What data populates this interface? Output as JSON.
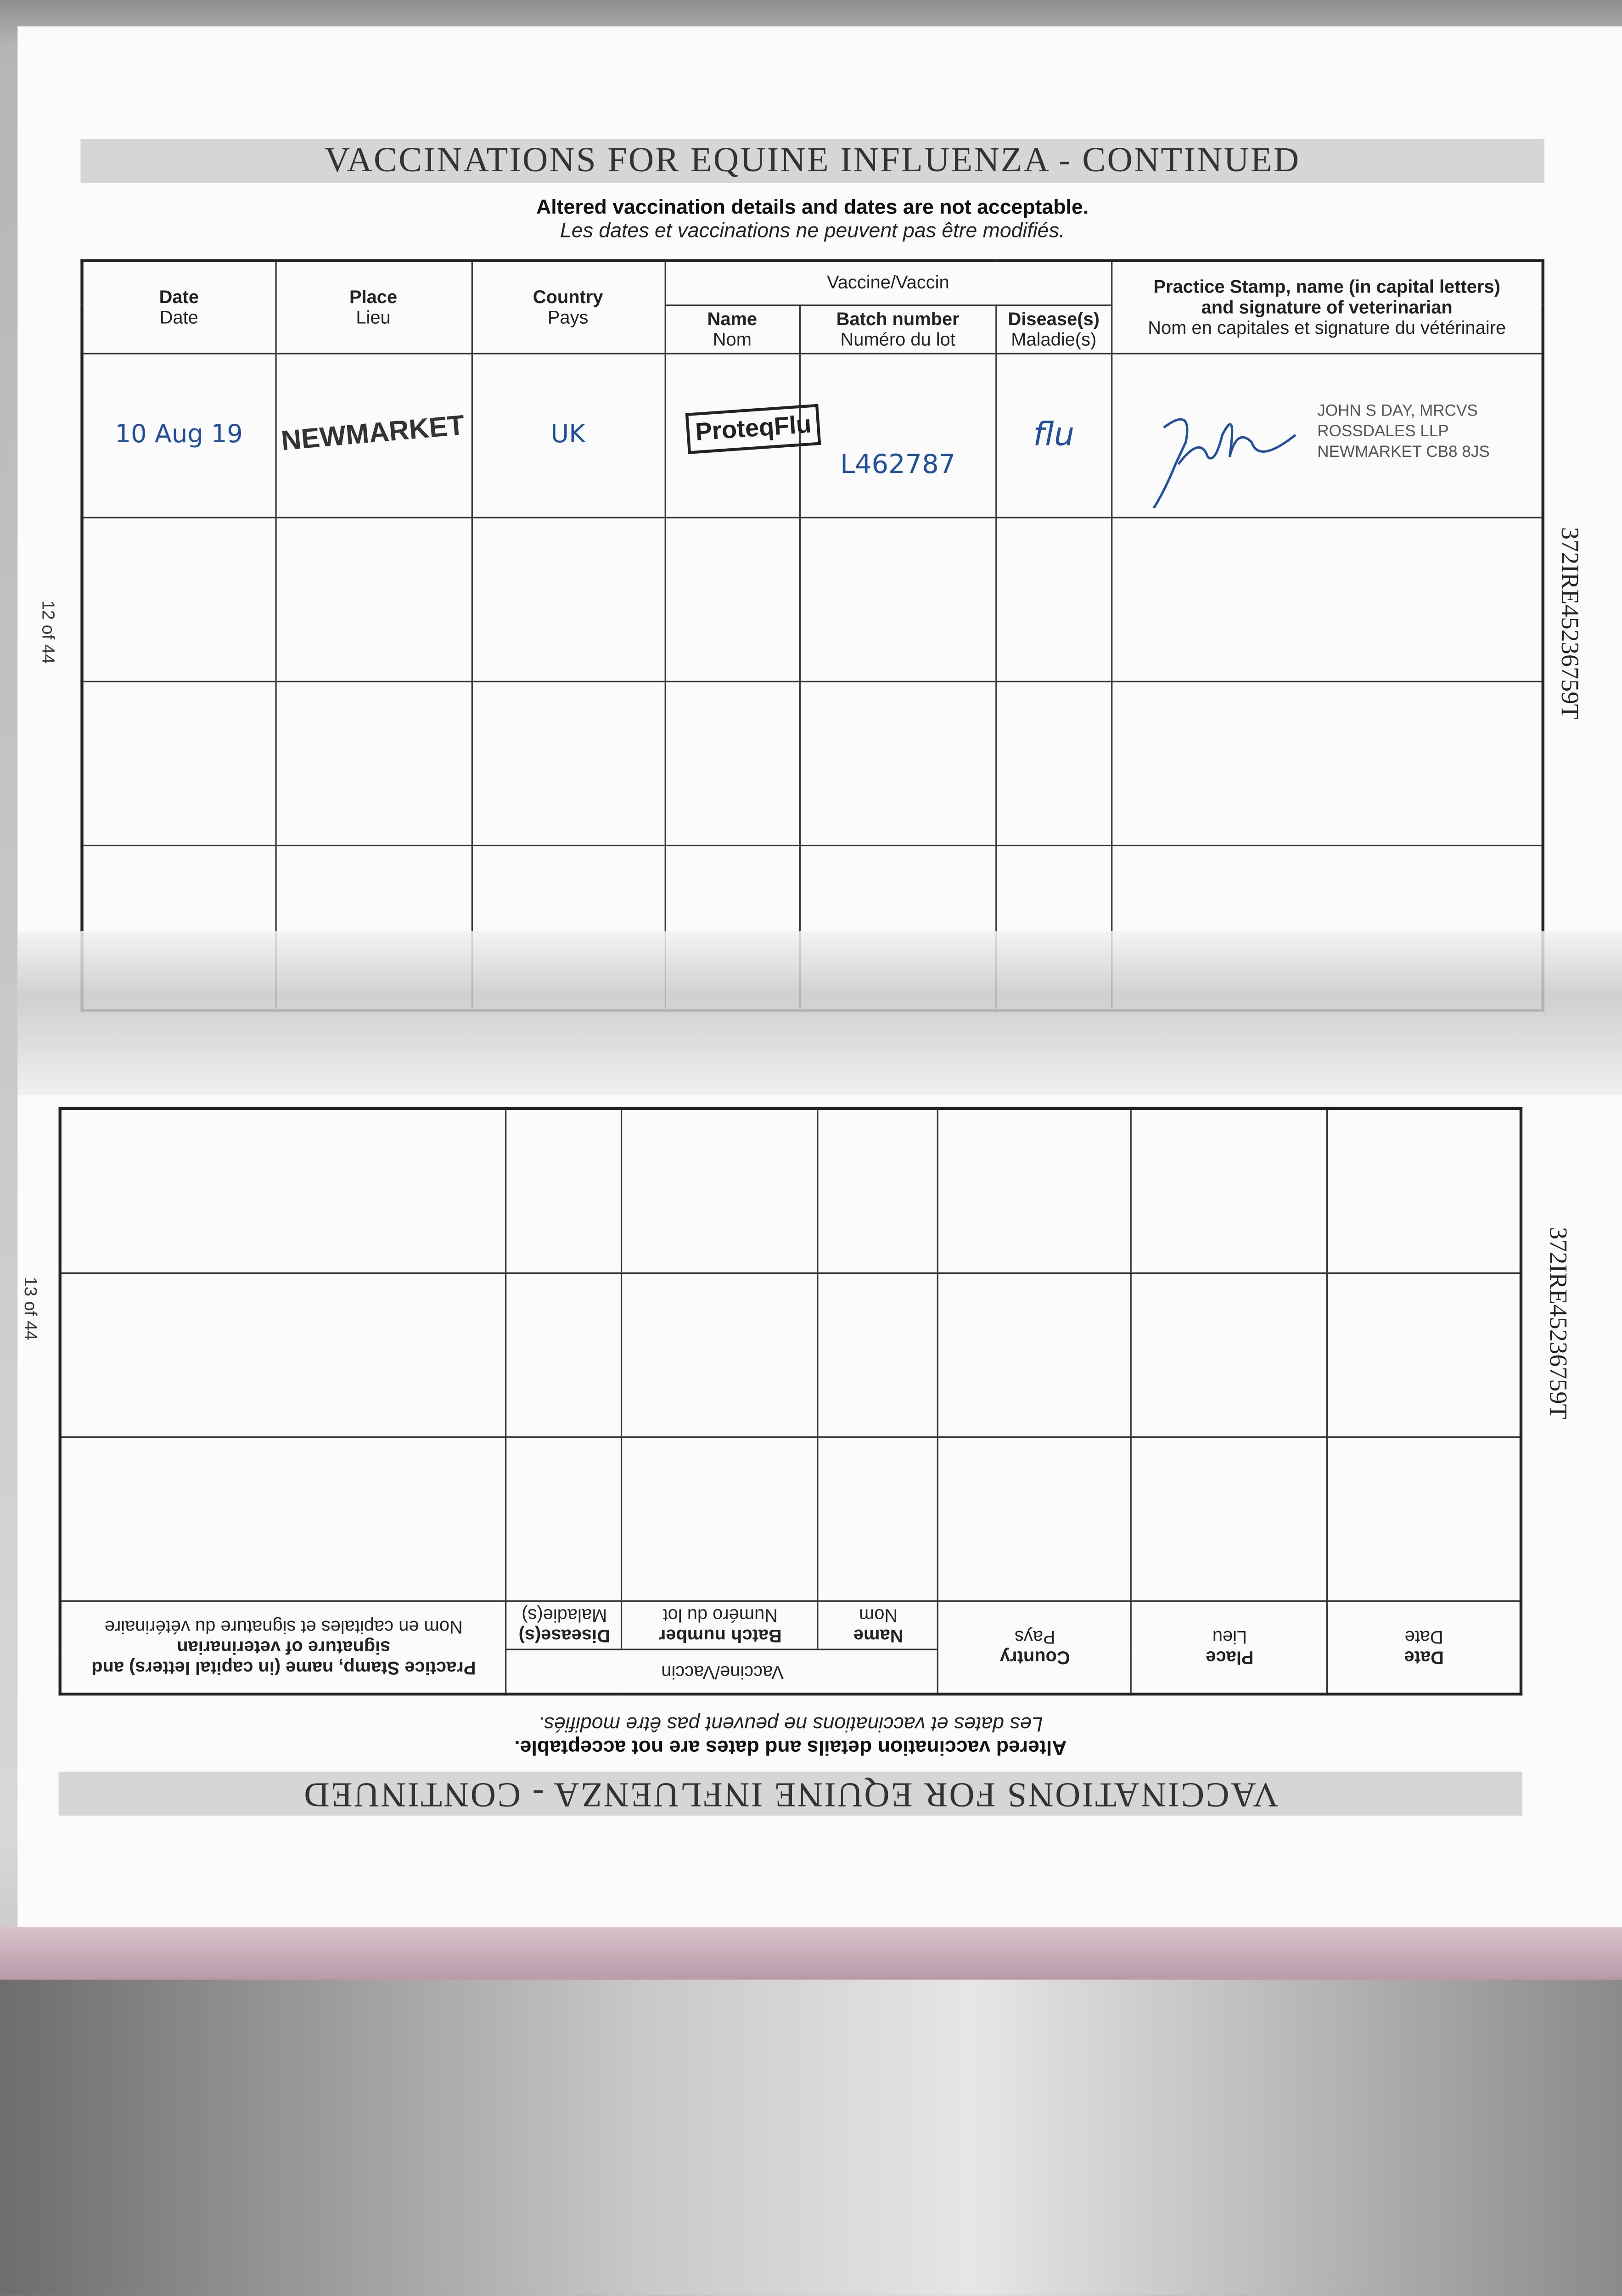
{
  "title": "VACCINATIONS FOR EQUINE INFLUENZA - CONTINUED",
  "notice_en": "Altered vaccination details and dates are not acceptable.",
  "notice_fr": "Les dates et vaccinations ne peuvent pas être modifiés.",
  "headers": {
    "date": {
      "en": "Date",
      "fr": "Date"
    },
    "place": {
      "en": "Place",
      "fr": "Lieu"
    },
    "country": {
      "en": "Country",
      "fr": "Pays"
    },
    "vaccine": "Vaccine/Vaccin",
    "name": {
      "en": "Name",
      "fr": "Nom"
    },
    "batch": {
      "en": "Batch number",
      "fr": "Numéro du lot"
    },
    "disease": {
      "en": "Disease(s)",
      "fr": "Maladie(s)"
    },
    "stamp": {
      "en": "Practice Stamp, name (in capital letters) and signature of veterinarian",
      "fr": "Nom en capitales et signature du vétérinaire"
    }
  },
  "entries": [
    {
      "date": "10 Aug 19",
      "place": "NEWMARKET",
      "country": "UK",
      "vaccine_name": "ProteqFlu",
      "batch": "L462787",
      "disease": "flu",
      "vet_stamp": [
        "JOHN S DAY, MRCVS",
        "ROSSDALES LLP",
        "NEWMARKET CB8 8JS"
      ]
    }
  ],
  "page_upper": "12 of 44",
  "page_lower": "13 of 44",
  "passport_id": "372IRE45236759T",
  "ink_color": "#1f4fa0"
}
